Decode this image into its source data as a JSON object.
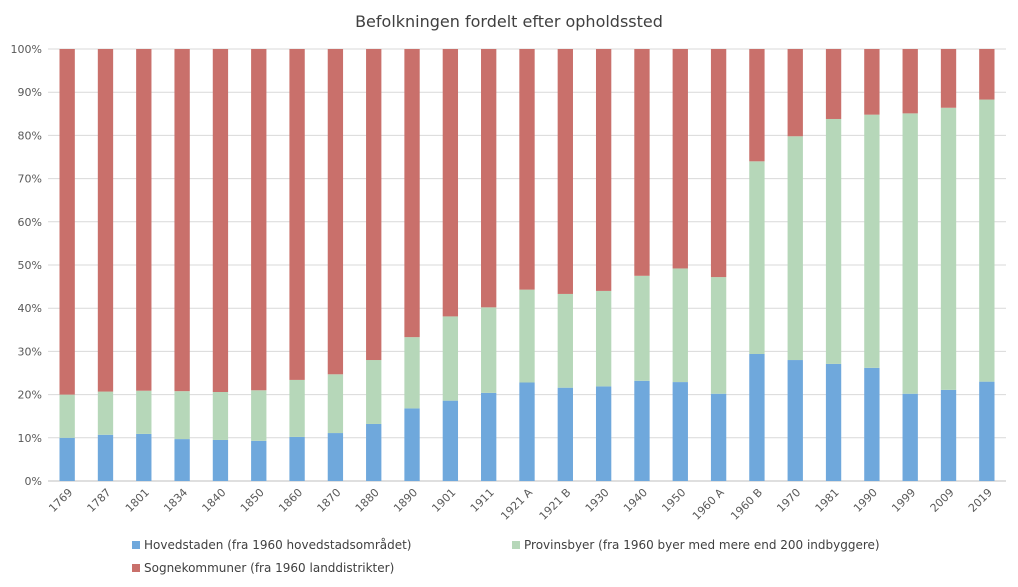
{
  "chart_data": {
    "type": "bar",
    "stacked": true,
    "title": "Befolkningen fordelt efter opholdssted",
    "xlabel": "",
    "ylabel": "",
    "ylim": [
      0,
      100
    ],
    "y_ticks": [
      "0%",
      "10%",
      "20%",
      "30%",
      "40%",
      "50%",
      "60%",
      "70%",
      "80%",
      "90%",
      "100%"
    ],
    "grid": true,
    "legend_position": "bottom",
    "categories": [
      "1769",
      "1787",
      "1801",
      "1834",
      "1840",
      "1850",
      "1860",
      "1870",
      "1880",
      "1890",
      "1901",
      "1911",
      "1921 A",
      "1921 B",
      "1930",
      "1940",
      "1950",
      "1960 A",
      "1960 B",
      "1970",
      "1981",
      "1990",
      "1999",
      "2009",
      "2019"
    ],
    "series": [
      {
        "name": "Hovedstaden (fra 1960 hovedstadsområdet)",
        "color": "#6fa8dc",
        "values": [
          10.0,
          10.7,
          10.9,
          9.7,
          9.5,
          9.3,
          10.2,
          11.1,
          13.2,
          16.8,
          18.6,
          20.4,
          22.8,
          21.6,
          21.9,
          23.2,
          22.9,
          20.2,
          29.4,
          28.0,
          27.1,
          26.2,
          20.2,
          21.1,
          23.0
        ]
      },
      {
        "name": "Provinsbyer (fra 1960 byer med mere end 200 indbyggere)",
        "color": "#b6d7b9",
        "values": [
          10.0,
          10.0,
          10.0,
          11.1,
          11.1,
          11.7,
          13.2,
          13.6,
          14.8,
          16.5,
          19.5,
          19.8,
          21.5,
          21.7,
          22.1,
          24.3,
          26.3,
          27.0,
          44.6,
          51.8,
          56.7,
          58.6,
          64.9,
          65.3,
          65.3
        ]
      },
      {
        "name": "Sognekommuner (fra 1960 landdistrikter)",
        "color": "#c9706b",
        "values": [
          80.0,
          79.3,
          79.1,
          79.2,
          79.4,
          79.0,
          76.6,
          75.3,
          72.0,
          66.7,
          61.9,
          59.8,
          55.7,
          56.7,
          56.0,
          52.5,
          50.8,
          52.8,
          26.0,
          20.2,
          16.2,
          15.2,
          14.9,
          13.6,
          11.7
        ]
      }
    ]
  }
}
